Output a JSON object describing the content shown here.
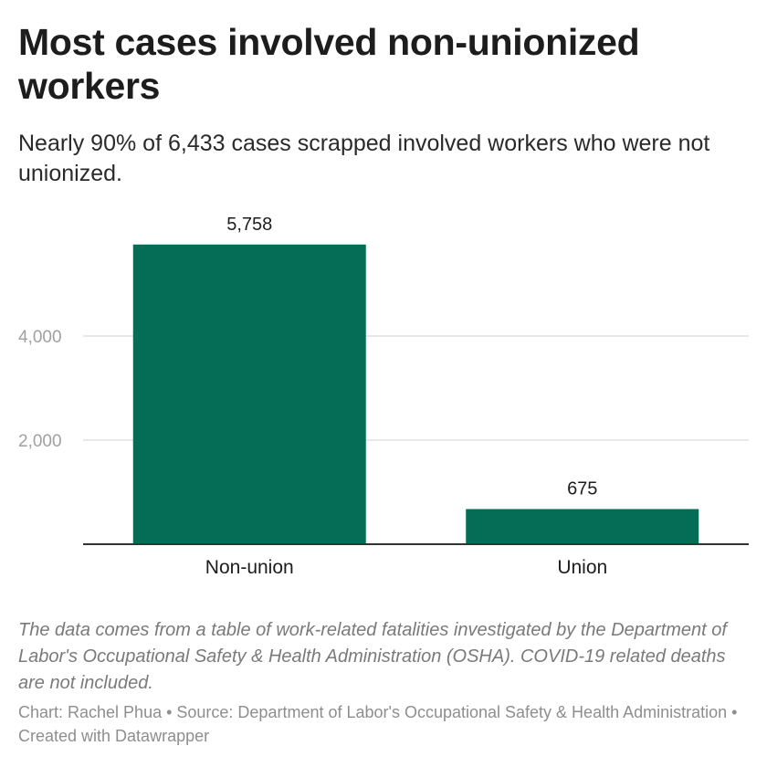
{
  "header": {
    "title": "Most cases involved non-unionized workers",
    "subtitle": "Nearly 90% of 6,433 cases scrapped involved workers who were not unionized."
  },
  "colors": {
    "bar": "#056d55",
    "grid": "#e0e0e0",
    "axis": "#333333"
  },
  "chart_data": {
    "type": "bar",
    "title": "Most cases involved non-unionized workers",
    "categories": [
      "Non-union",
      "Union"
    ],
    "values": [
      5758,
      675
    ],
    "value_labels": [
      "5,758",
      "675"
    ],
    "xlabel": "",
    "ylabel": "",
    "ylim": [
      0,
      6000
    ],
    "yticks": [
      2000,
      4000
    ],
    "ytick_labels": [
      "2,000",
      "4,000"
    ],
    "grid": true
  },
  "notes": "The data comes from a table of work-related fatalities investigated by the Department of Labor's Occupational Safety & Health Administration (OSHA). COVID-19 related deaths are not included.",
  "footer": "Chart: Rachel Phua • Source: Department of Labor's Occupational Safety & Health Administration • Created with Datawrapper"
}
